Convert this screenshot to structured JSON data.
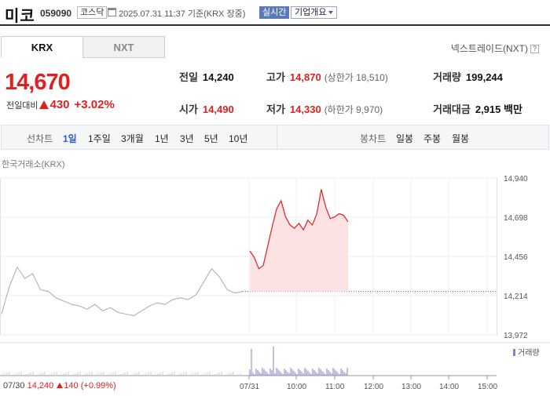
{
  "header": {
    "stock_name": "미코",
    "stock_code": "059090",
    "market": "코스닥",
    "timestamp": "2025.07.31 11:37 기준(KRX 장중)",
    "realtime_label": "실시간",
    "company_info_label": "기업개요"
  },
  "exchange_tabs": [
    "KRX",
    "NXT"
  ],
  "nextrade_link": "넥스트레이드(NXT)",
  "nextrade_help": "?",
  "quote": {
    "price": "14,670",
    "change_label": "전일대비",
    "change_amount": "430",
    "change_pct": "+3.02%"
  },
  "stats": {
    "prev_close_label": "전일",
    "prev_close": "14,240",
    "high_label": "고가",
    "high": "14,870",
    "upper_limit": "(상한가 18,510)",
    "volume_label": "거래량",
    "volume": "199,244",
    "open_label": "시가",
    "open": "14,490",
    "low_label": "저가",
    "low": "14,330",
    "lower_limit": "(하한가 9,970)",
    "amount_label": "거래대금",
    "amount": "2,915 백만"
  },
  "period_bar": {
    "line_label": "선차트",
    "line_periods": [
      "1일",
      "1주일",
      "3개월",
      "1년",
      "3년",
      "5년",
      "10년"
    ],
    "selected": "1일",
    "candle_label": "봉차트",
    "candle_periods": [
      "일봉",
      "주봉",
      "월봉"
    ]
  },
  "chart_source": "한국거래소(KRX)",
  "chart_data": {
    "type": "line",
    "title": "",
    "y_ticks": [
      "14,940",
      "14,698",
      "14,456",
      "14,214",
      "13,972"
    ],
    "ylim": [
      13972,
      14940
    ],
    "x_ticks": [
      "07/31",
      "10:00",
      "11:00",
      "12:00",
      "13:00",
      "14:00",
      "15:00"
    ],
    "prev_close": 14240,
    "series": [
      {
        "name": "",
        "color": "#aaaaaa",
        "values": [
          14100,
          14270,
          14390,
          14320,
          14350,
          14250,
          14240,
          14200,
          14180,
          14160,
          14150,
          14130,
          14160,
          14120,
          14140,
          14110,
          14100,
          14090,
          14120,
          14150,
          14170,
          14160,
          14190,
          14200,
          14190,
          14220,
          14300,
          14380,
          14330,
          14250,
          14230,
          14240
        ]
      },
      {
        "name": "",
        "color": "#e02020",
        "values": [
          14490,
          14450,
          14380,
          14400,
          14520,
          14640,
          14750,
          14800,
          14700,
          14650,
          14630,
          14660,
          14620,
          14680,
          14650,
          14720,
          14870,
          14760,
          14690,
          14700,
          14720,
          14710,
          14670
        ]
      }
    ],
    "volume_legend": "거래량"
  },
  "footer": {
    "date": "07/30",
    "close": "14,240",
    "change": "140",
    "change_pct": "(+0.99%)"
  }
}
